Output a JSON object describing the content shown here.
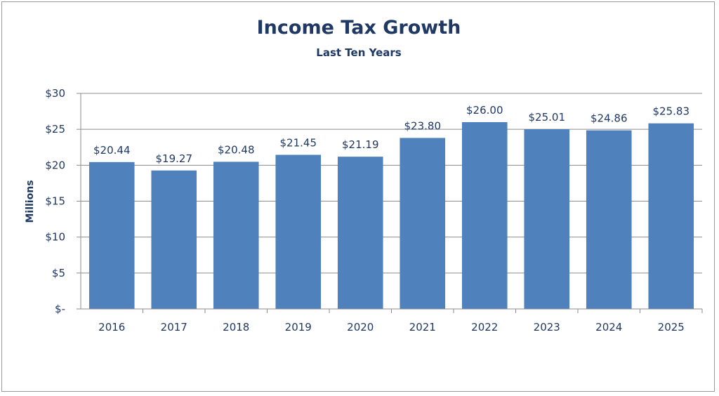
{
  "chart_data": {
    "type": "bar",
    "title": "Income Tax Growth",
    "subtitle": "Last Ten Years",
    "ylabel": "Millions",
    "xlabel": "",
    "categories": [
      "2016",
      "2017",
      "2018",
      "2019",
      "2020",
      "2021",
      "2022",
      "2023",
      "2024",
      "2025"
    ],
    "values": [
      20.44,
      19.27,
      20.48,
      21.45,
      21.19,
      23.8,
      26.0,
      25.01,
      24.86,
      25.83
    ],
    "data_labels": [
      "$20.44",
      "$19.27",
      "$20.48",
      "$21.45",
      "$21.19",
      "$23.80",
      "$26.00",
      "$25.01",
      "$24.86",
      "$25.83"
    ],
    "ylim": [
      0,
      30
    ],
    "y_ticks": [
      0,
      5,
      10,
      15,
      20,
      25,
      30
    ],
    "y_tick_labels": [
      "$-",
      "$5",
      "$10",
      "$15",
      "$20",
      "$25",
      "$30"
    ],
    "grid": true,
    "legend": "none",
    "colors": {
      "bar": "#4f81bd",
      "text": "#1f3864",
      "grid": "#8c8c8c"
    }
  }
}
